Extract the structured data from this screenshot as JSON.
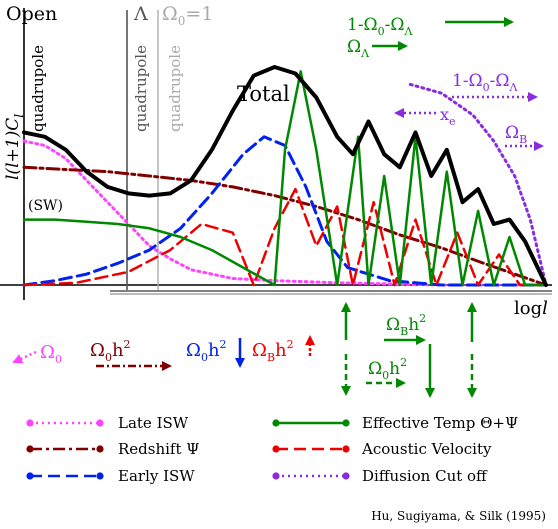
{
  "chart_data": {
    "type": "line",
    "ylabel": "l(l+1)C",
    "ylabel_sub": "l",
    "xlabel": "log",
    "xlabel_var": "l",
    "open_label": "Open",
    "lambda_label": "Λ",
    "omega0_eq_1_label": "Ω",
    "omega0_eq_1_sub": "0",
    "omega0_eq_1_tail": "=1",
    "quadrupole_label": "quadrupole",
    "sw_label": "(SW)",
    "total_label": "Total",
    "grid": false,
    "series": [
      {
        "name": "Total",
        "color": "#000000",
        "style": "solid",
        "width": 4,
        "x": [
          0.0,
          0.04,
          0.08,
          0.12,
          0.16,
          0.2,
          0.24,
          0.28,
          0.32,
          0.36,
          0.4,
          0.44,
          0.48,
          0.52,
          0.56,
          0.6,
          0.63,
          0.66,
          0.69,
          0.72,
          0.75,
          0.78,
          0.81,
          0.84,
          0.87,
          0.9,
          0.93,
          0.96,
          1.0
        ],
        "y": [
          0.7,
          0.68,
          0.62,
          0.52,
          0.45,
          0.42,
          0.41,
          0.42,
          0.48,
          0.62,
          0.8,
          0.96,
          1.0,
          0.97,
          0.86,
          0.68,
          0.6,
          0.75,
          0.6,
          0.54,
          0.7,
          0.5,
          0.62,
          0.38,
          0.44,
          0.28,
          0.3,
          0.2,
          0.0
        ]
      },
      {
        "name": "Late ISW",
        "color": "#ff44ff",
        "style": "dotted",
        "width": 3,
        "x": [
          0.0,
          0.04,
          0.08,
          0.12,
          0.16,
          0.2,
          0.24,
          0.28,
          0.32,
          0.36,
          0.4,
          0.48,
          0.6,
          0.8,
          1.0
        ],
        "y": [
          0.66,
          0.64,
          0.58,
          0.48,
          0.38,
          0.28,
          0.18,
          0.12,
          0.07,
          0.05,
          0.03,
          0.02,
          0.01,
          0.0,
          0.0
        ]
      },
      {
        "name": "Redshift",
        "color": "#800000",
        "style": "dashdot",
        "width": 3,
        "x": [
          0.0,
          0.08,
          0.16,
          0.24,
          0.32,
          0.4,
          0.48,
          0.56,
          0.64,
          0.72,
          0.8,
          0.88,
          0.94,
          1.0
        ],
        "y": [
          0.54,
          0.53,
          0.52,
          0.5,
          0.48,
          0.45,
          0.41,
          0.36,
          0.3,
          0.23,
          0.17,
          0.1,
          0.05,
          0.0
        ]
      },
      {
        "name": "Early ISW",
        "color": "#0022ee",
        "style": "dashed",
        "width": 3,
        "x": [
          0.0,
          0.06,
          0.12,
          0.18,
          0.24,
          0.3,
          0.36,
          0.42,
          0.46,
          0.5,
          0.54,
          0.58,
          0.62,
          0.7,
          0.8,
          1.0
        ],
        "y": [
          0.0,
          0.02,
          0.05,
          0.1,
          0.16,
          0.26,
          0.42,
          0.6,
          0.68,
          0.64,
          0.45,
          0.2,
          0.08,
          0.02,
          0.0,
          0.0
        ]
      },
      {
        "name": "Effective Temp",
        "color": "#008800",
        "style": "solid",
        "width": 2.5,
        "x": [
          0.0,
          0.06,
          0.12,
          0.18,
          0.24,
          0.3,
          0.36,
          0.42,
          0.48,
          0.5,
          0.53,
          0.56,
          0.6,
          0.64,
          0.66,
          0.69,
          0.72,
          0.75,
          0.78,
          0.81,
          0.84,
          0.87,
          0.9,
          0.93,
          0.96,
          1.0
        ],
        "y": [
          0.3,
          0.3,
          0.29,
          0.28,
          0.26,
          0.22,
          0.16,
          0.08,
          0.0,
          0.62,
          0.98,
          0.62,
          0.0,
          0.68,
          0.0,
          0.5,
          0.0,
          0.68,
          0.0,
          0.52,
          0.0,
          0.34,
          0.0,
          0.22,
          0.0,
          0.0
        ]
      },
      {
        "name": "Acoustic Velocity",
        "color": "#ee0000",
        "style": "dashed",
        "width": 2.5,
        "x": [
          0.0,
          0.1,
          0.2,
          0.28,
          0.34,
          0.4,
          0.44,
          0.48,
          0.52,
          0.56,
          0.6,
          0.63,
          0.67,
          0.71,
          0.75,
          0.79,
          0.83,
          0.87,
          0.91,
          0.95,
          1.0
        ],
        "y": [
          0.0,
          0.01,
          0.06,
          0.16,
          0.28,
          0.24,
          0.0,
          0.26,
          0.44,
          0.18,
          0.36,
          0.0,
          0.38,
          0.0,
          0.3,
          0.0,
          0.24,
          0.0,
          0.14,
          0.0,
          0.0
        ]
      },
      {
        "name": "Diffusion Cut off",
        "color": "#8a2be2",
        "style": "dotted",
        "width": 3,
        "x": [
          0.74,
          0.8,
          0.86,
          0.9,
          0.94,
          0.97,
          0.99,
          1.0
        ],
        "y": [
          0.92,
          0.88,
          0.78,
          0.66,
          0.5,
          0.3,
          0.1,
          0.0
        ]
      }
    ]
  },
  "annotations": {
    "top_right_1": {
      "base": "1-Ω",
      "sub1": "0",
      "mid": "-Ω",
      "sub2": "Λ"
    },
    "top_right_2": {
      "base": "Ω",
      "sub": "Λ"
    },
    "right_1": {
      "base": "1-Ω",
      "sub1": "0",
      "mid": "-Ω",
      "sub2": "Λ"
    },
    "right_xe": {
      "base": "x",
      "sub": "e"
    },
    "right_omegab": {
      "base": "Ω",
      "sub": "B"
    }
  },
  "params_row": {
    "omega0": {
      "base": "Ω",
      "sub": "0"
    },
    "omega0h2_dark": {
      "base": "Ω",
      "sub": "0",
      "tail": "h",
      "sup": "2"
    },
    "omega0h2_blue": {
      "base": "Ω",
      "sub": "0",
      "tail": "h",
      "sup": "2"
    },
    "omegabh2_red": {
      "base": "Ω",
      "sub": "B",
      "tail": "h",
      "sup": "2"
    },
    "omegabh2_green": {
      "base": "Ω",
      "sub": "B",
      "tail": "h",
      "sup": "2"
    },
    "omega0h2_green": {
      "base": "Ω",
      "sub": "0",
      "tail": "h",
      "sup": "2"
    }
  },
  "legend": [
    {
      "label": "Late ISW",
      "color": "#ff44ff",
      "style": "dotted"
    },
    {
      "label": "Redshift Ψ",
      "color": "#800000",
      "style": "dashdot"
    },
    {
      "label": "Early ISW",
      "color": "#0022ee",
      "style": "dashed"
    },
    {
      "label": "Effective Temp Θ+Ψ",
      "color": "#008800",
      "style": "solid"
    },
    {
      "label": "Acoustic Velocity",
      "color": "#ee0000",
      "style": "dashed"
    },
    {
      "label": "Diffusion Cut off",
      "color": "#8a2be2",
      "style": "dotted"
    }
  ],
  "credit": "Hu, Sugiyama, & Silk (1995)"
}
